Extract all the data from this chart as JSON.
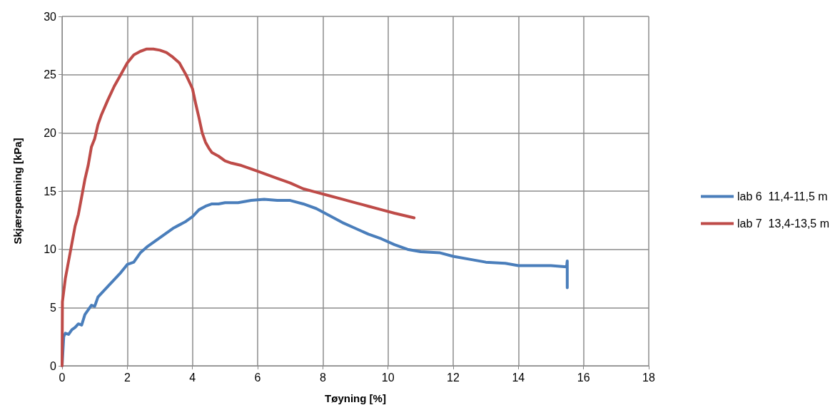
{
  "chart_data": {
    "type": "line",
    "xlabel": "Tøyning [%]",
    "ylabel": "Skjærspenning [kPa]",
    "xlim": [
      0,
      18
    ],
    "xticks": [
      0,
      2,
      4,
      6,
      8,
      10,
      12,
      14,
      16,
      18
    ],
    "ylim": [
      0,
      30
    ],
    "yticks": [
      0,
      5,
      10,
      15,
      20,
      25,
      30
    ],
    "grid": true,
    "legend": "right",
    "marker": "none",
    "line_style": "solid",
    "series": [
      {
        "name": "lab 6  11,4-11,5 m",
        "color": "#4a7ebb",
        "x": [
          0,
          0.05,
          0.1,
          0.2,
          0.3,
          0.4,
          0.5,
          0.6,
          0.7,
          0.8,
          0.9,
          1.0,
          1.1,
          1.2,
          1.4,
          1.6,
          1.8,
          2.0,
          2.2,
          2.4,
          2.6,
          2.8,
          3.0,
          3.2,
          3.4,
          3.6,
          3.8,
          4.0,
          4.2,
          4.4,
          4.6,
          4.8,
          5.0,
          5.4,
          5.8,
          6.2,
          6.6,
          7.0,
          7.4,
          7.8,
          8.2,
          8.6,
          9.0,
          9.4,
          9.8,
          10.2,
          10.6,
          11.0,
          11.6,
          12.0,
          12.6,
          13.0,
          13.6,
          14.0,
          14.6,
          15.0,
          15.48,
          15.5,
          15.5
        ],
        "values": [
          0,
          2.5,
          2.8,
          2.7,
          3.1,
          3.3,
          3.6,
          3.5,
          4.4,
          4.8,
          5.2,
          5.1,
          5.9,
          6.2,
          6.8,
          7.4,
          8.0,
          8.7,
          8.9,
          9.7,
          10.2,
          10.6,
          11.0,
          11.4,
          11.8,
          12.1,
          12.4,
          12.8,
          13.4,
          13.7,
          13.9,
          13.9,
          14.0,
          14.0,
          14.2,
          14.3,
          14.2,
          14.2,
          13.9,
          13.5,
          12.9,
          12.3,
          11.8,
          11.3,
          10.9,
          10.4,
          10.0,
          9.8,
          9.7,
          9.4,
          9.1,
          8.9,
          8.8,
          8.6,
          8.6,
          8.6,
          8.5,
          9.0,
          6.7
        ]
      },
      {
        "name": "lab 7  13,4-13,5 m",
        "color": "#be4b48",
        "x": [
          0,
          0.01,
          0.1,
          0.2,
          0.3,
          0.4,
          0.5,
          0.6,
          0.7,
          0.8,
          0.9,
          1.0,
          1.1,
          1.2,
          1.4,
          1.6,
          1.8,
          2.0,
          2.2,
          2.4,
          2.6,
          2.8,
          3.0,
          3.2,
          3.4,
          3.6,
          3.8,
          4.0,
          4.1,
          4.2,
          4.3,
          4.4,
          4.5,
          4.6,
          4.8,
          5.0,
          5.2,
          5.5,
          5.8,
          6.0,
          6.3,
          6.6,
          7.0,
          7.4,
          7.8,
          8.2,
          8.6,
          9.0,
          9.4,
          9.8,
          10.2,
          10.5,
          10.8
        ],
        "values": [
          0,
          5.5,
          7.5,
          9,
          10.5,
          12,
          13,
          14.5,
          16,
          17.2,
          18.8,
          19.5,
          20.7,
          21.5,
          22.8,
          24,
          25,
          26,
          26.7,
          27,
          27.2,
          27.2,
          27.1,
          26.9,
          26.5,
          26,
          25,
          23.8,
          22.5,
          21.3,
          20,
          19.2,
          18.7,
          18.3,
          18,
          17.6,
          17.4,
          17.2,
          16.9,
          16.7,
          16.4,
          16.1,
          15.7,
          15.2,
          14.9,
          14.6,
          14.3,
          14,
          13.7,
          13.4,
          13.1,
          12.9,
          12.7
        ]
      }
    ]
  }
}
